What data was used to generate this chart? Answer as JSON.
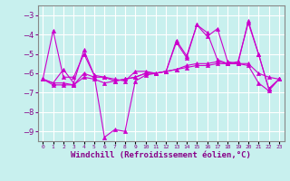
{
  "title": "",
  "xlabel": "Windchill (Refroidissement éolien,°C)",
  "background_color": "#c8f0ee",
  "grid_color": "#ffffff",
  "line_color": "#cc00cc",
  "spine_color": "#888888",
  "xlim": [
    -0.5,
    23.5
  ],
  "ylim": [
    -9.5,
    -2.5
  ],
  "yticks": [
    -9,
    -8,
    -7,
    -6,
    -5,
    -4,
    -3
  ],
  "xticks": [
    0,
    1,
    2,
    3,
    4,
    5,
    6,
    7,
    8,
    9,
    10,
    11,
    12,
    13,
    14,
    15,
    16,
    17,
    18,
    19,
    20,
    21,
    22,
    23
  ],
  "series": [
    {
      "x": [
        0,
        1,
        2,
        3,
        4,
        5,
        6,
        7,
        8,
        9,
        10,
        11,
        12,
        13,
        14,
        15,
        16,
        17,
        18,
        19,
        20,
        21,
        22,
        23
      ],
      "y": [
        -6.3,
        -3.8,
        -6.2,
        -6.2,
        -5.0,
        -6.1,
        -9.3,
        -8.9,
        -9.0,
        -6.4,
        -6.1,
        -6.0,
        -5.9,
        -4.4,
        -5.2,
        -3.5,
        -4.1,
        -3.7,
        -5.4,
        -5.5,
        -3.3,
        -5.0,
        -6.8,
        -6.3
      ]
    },
    {
      "x": [
        0,
        1,
        2,
        3,
        4,
        5,
        6,
        7,
        8,
        9,
        10,
        11,
        12,
        13,
        14,
        15,
        16,
        17,
        18,
        19,
        20,
        21,
        22,
        23
      ],
      "y": [
        -6.3,
        -6.6,
        -6.6,
        -6.6,
        -6.0,
        -6.2,
        -6.2,
        -6.4,
        -6.3,
        -6.2,
        -6.0,
        -6.0,
        -5.9,
        -5.8,
        -5.7,
        -5.6,
        -5.6,
        -5.5,
        -5.5,
        -5.5,
        -5.5,
        -6.0,
        -6.2,
        -6.3
      ]
    },
    {
      "x": [
        0,
        1,
        2,
        3,
        4,
        5,
        6,
        7,
        8,
        9,
        10,
        11,
        12,
        13,
        14,
        15,
        16,
        17,
        18,
        19,
        20,
        21,
        22,
        23
      ],
      "y": [
        -6.3,
        -6.5,
        -6.5,
        -6.6,
        -6.2,
        -6.3,
        -6.5,
        -6.4,
        -6.3,
        -6.2,
        -6.0,
        -6.0,
        -5.9,
        -5.8,
        -5.6,
        -5.5,
        -5.5,
        -5.4,
        -5.5,
        -5.5,
        -5.6,
        -6.5,
        -6.9,
        -6.3
      ]
    },
    {
      "x": [
        0,
        1,
        2,
        3,
        4,
        5,
        6,
        7,
        8,
        9,
        10,
        11,
        12,
        13,
        14,
        15,
        16,
        17,
        18,
        19,
        20,
        21,
        22,
        23
      ],
      "y": [
        -6.3,
        -6.5,
        -5.8,
        -6.5,
        -4.8,
        -6.1,
        -6.2,
        -6.3,
        -6.4,
        -5.9,
        -5.9,
        -6.0,
        -5.9,
        -4.3,
        -5.1,
        -3.5,
        -3.9,
        -5.3,
        -5.5,
        -5.4,
        -3.4,
        -5.0,
        -6.8,
        -6.3
      ]
    }
  ]
}
